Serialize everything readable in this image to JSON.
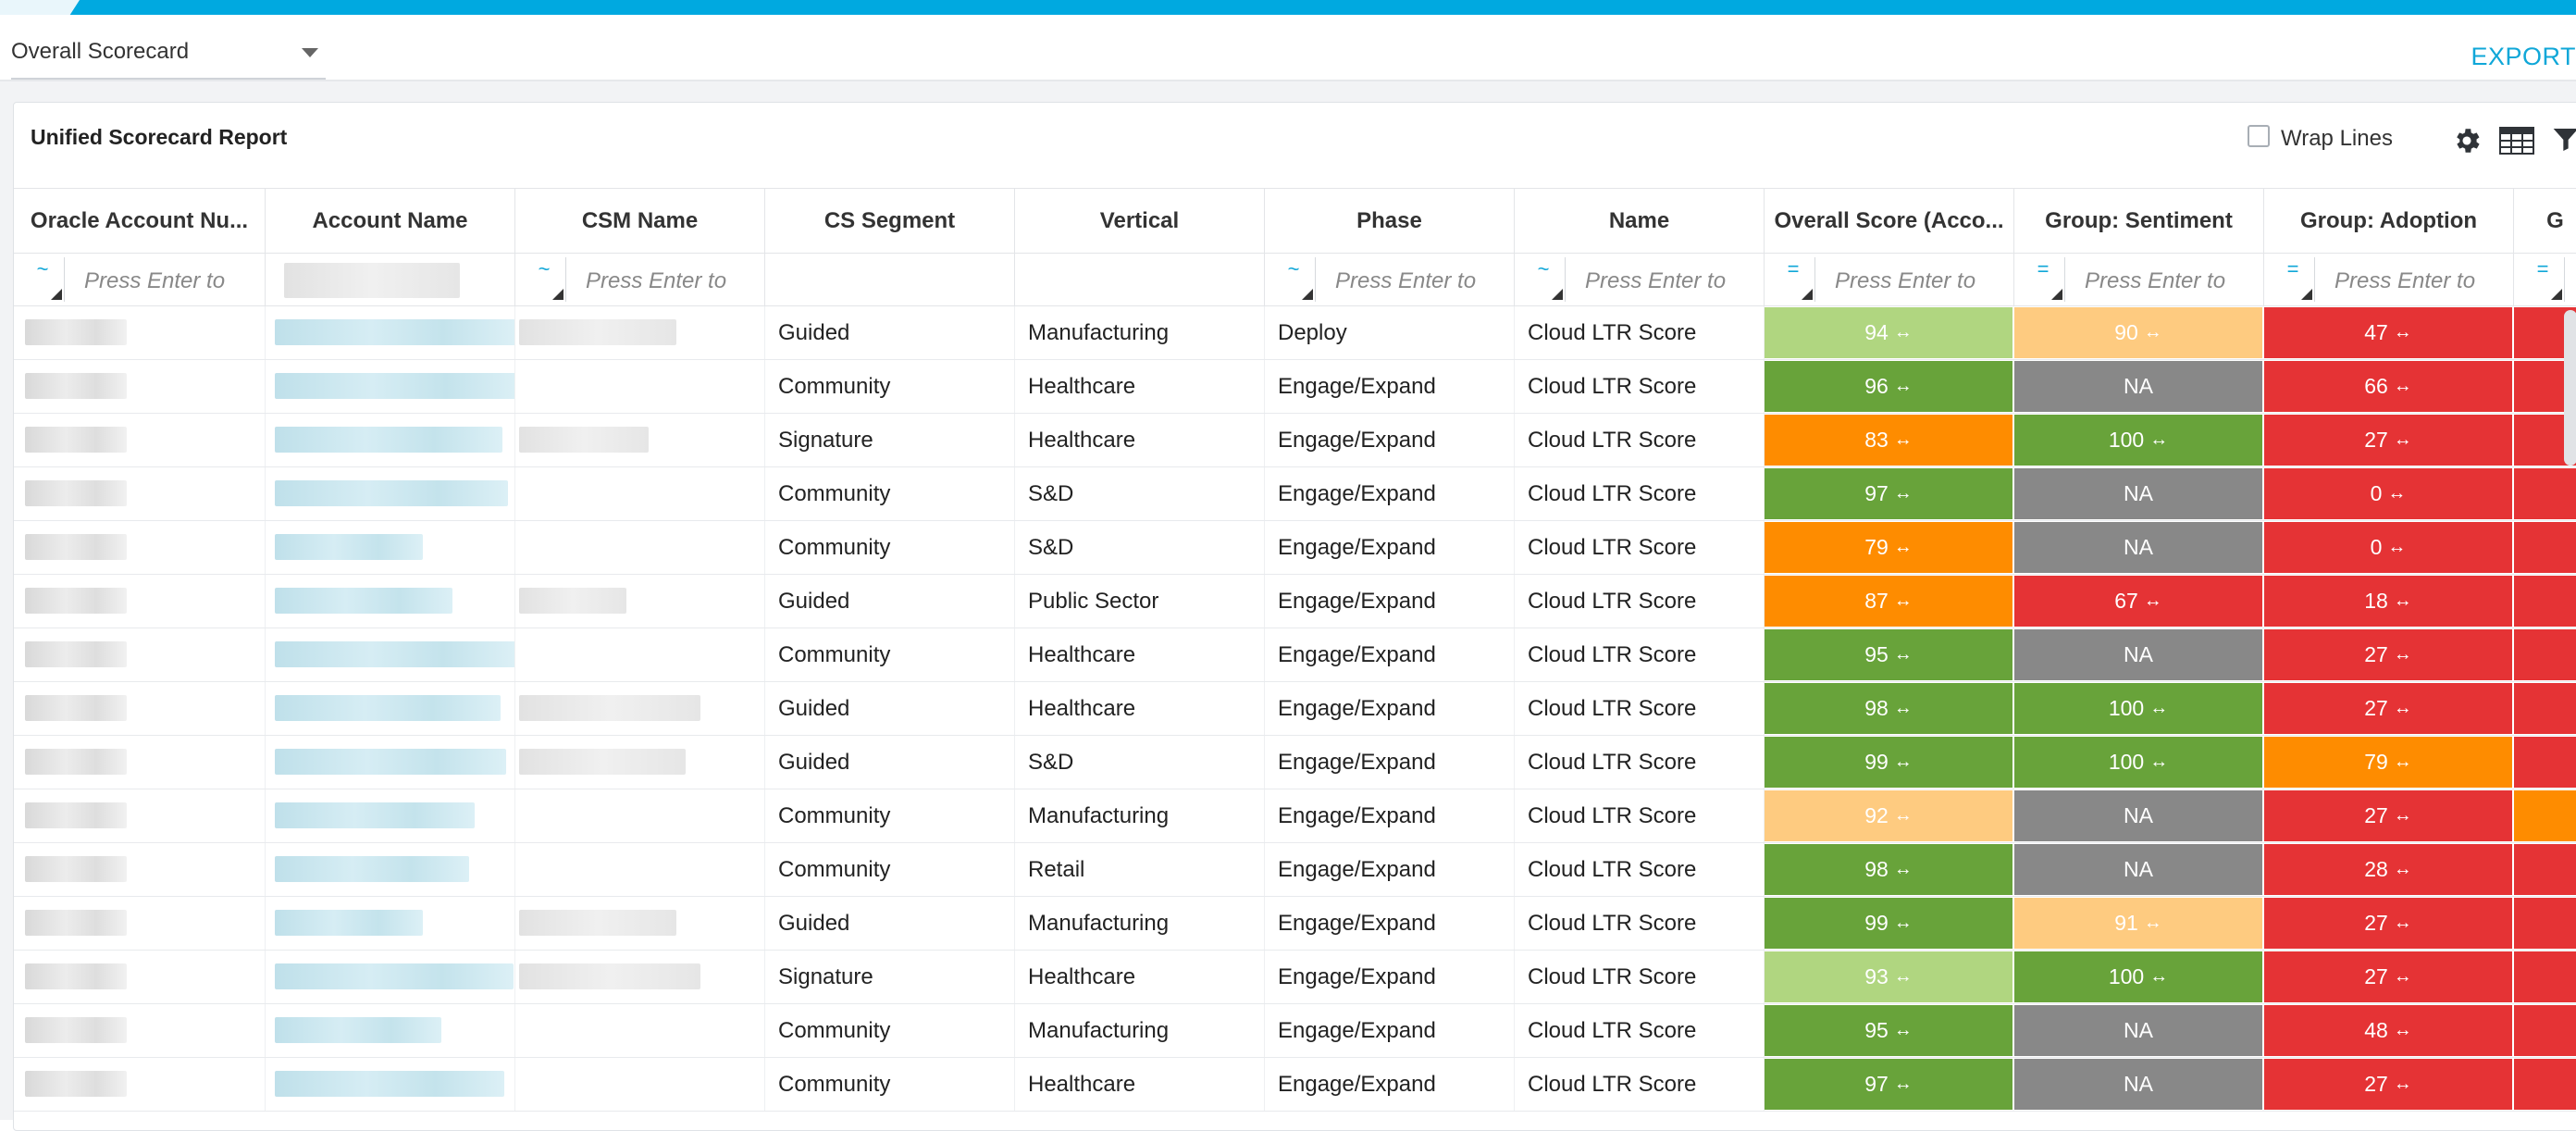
{
  "header": {
    "scorecard_select": "Overall Scorecard",
    "export_label": "EXPORT"
  },
  "report": {
    "title": "Unified Scorecard Report",
    "wrap_lines_label": "Wrap Lines",
    "wrap_lines_checked": false
  },
  "icons": [
    "gear-icon",
    "table-icon",
    "filter-icon",
    "chevron-down-icon"
  ],
  "columns": [
    {
      "label": "Oracle Account Nu...",
      "filter_op": "~",
      "filter_placeholder": "Press Enter to"
    },
    {
      "label": "Account Name",
      "filter_op": "",
      "filter_placeholder": ""
    },
    {
      "label": "CSM Name",
      "filter_op": "~",
      "filter_placeholder": "Press Enter to"
    },
    {
      "label": "CS Segment",
      "filter_op": "",
      "filter_placeholder": ""
    },
    {
      "label": "Vertical",
      "filter_op": "",
      "filter_placeholder": ""
    },
    {
      "label": "Phase",
      "filter_op": "~",
      "filter_placeholder": "Press Enter to"
    },
    {
      "label": "Name",
      "filter_op": "~",
      "filter_placeholder": "Press Enter to"
    },
    {
      "label": "Overall Score (Acco...",
      "filter_op": "=",
      "filter_placeholder": "Press Enter to"
    },
    {
      "label": "Group: Sentiment",
      "filter_op": "=",
      "filter_placeholder": "Press Enter to"
    },
    {
      "label": "Group: Adoption",
      "filter_op": "=",
      "filter_placeholder": "Press Enter to"
    },
    {
      "label": "G",
      "filter_op": "=",
      "filter_placeholder": ""
    }
  ],
  "colors": {
    "light_green": "#b0d680",
    "green": "#68a33a",
    "orange": "#fe8c00",
    "light_orange": "#fecb80",
    "red": "#e53335",
    "gray": "#888888",
    "accent": "#00a9e0"
  },
  "trend_symbol": "↔",
  "rows": [
    {
      "segment": "Guided",
      "vertical": "Manufacturing",
      "phase": "Deploy",
      "name": "Cloud LTR Score",
      "overall": {
        "text": "94",
        "color": "light_green"
      },
      "sentiment": {
        "text": "90",
        "color": "light_orange"
      },
      "adoption": {
        "text": "47",
        "color": "red"
      },
      "last_color": "red"
    },
    {
      "segment": "Community",
      "vertical": "Healthcare",
      "phase": "Engage/Expand",
      "name": "Cloud LTR Score",
      "overall": {
        "text": "96",
        "color": "green"
      },
      "sentiment": {
        "text": "NA",
        "color": "gray"
      },
      "adoption": {
        "text": "66",
        "color": "red"
      },
      "last_color": "red"
    },
    {
      "segment": "Signature",
      "vertical": "Healthcare",
      "phase": "Engage/Expand",
      "name": "Cloud LTR Score",
      "overall": {
        "text": "83",
        "color": "orange"
      },
      "sentiment": {
        "text": "100",
        "color": "green"
      },
      "adoption": {
        "text": "27",
        "color": "red"
      },
      "last_color": "red"
    },
    {
      "segment": "Community",
      "vertical": "S&D",
      "phase": "Engage/Expand",
      "name": "Cloud LTR Score",
      "overall": {
        "text": "97",
        "color": "green"
      },
      "sentiment": {
        "text": "NA",
        "color": "gray"
      },
      "adoption": {
        "text": "0",
        "color": "red"
      },
      "last_color": "red"
    },
    {
      "segment": "Community",
      "vertical": "S&D",
      "phase": "Engage/Expand",
      "name": "Cloud LTR Score",
      "overall": {
        "text": "79",
        "color": "orange"
      },
      "sentiment": {
        "text": "NA",
        "color": "gray"
      },
      "adoption": {
        "text": "0",
        "color": "red"
      },
      "last_color": "red"
    },
    {
      "segment": "Guided",
      "vertical": "Public Sector",
      "phase": "Engage/Expand",
      "name": "Cloud LTR Score",
      "overall": {
        "text": "87",
        "color": "orange"
      },
      "sentiment": {
        "text": "67",
        "color": "red"
      },
      "adoption": {
        "text": "18",
        "color": "red"
      },
      "last_color": "red"
    },
    {
      "segment": "Community",
      "vertical": "Healthcare",
      "phase": "Engage/Expand",
      "name": "Cloud LTR Score",
      "overall": {
        "text": "95",
        "color": "green"
      },
      "sentiment": {
        "text": "NA",
        "color": "gray"
      },
      "adoption": {
        "text": "27",
        "color": "red"
      },
      "last_color": "red"
    },
    {
      "segment": "Guided",
      "vertical": "Healthcare",
      "phase": "Engage/Expand",
      "name": "Cloud LTR Score",
      "overall": {
        "text": "98",
        "color": "green"
      },
      "sentiment": {
        "text": "100",
        "color": "green"
      },
      "adoption": {
        "text": "27",
        "color": "red"
      },
      "last_color": "red"
    },
    {
      "segment": "Guided",
      "vertical": "S&D",
      "phase": "Engage/Expand",
      "name": "Cloud LTR Score",
      "overall": {
        "text": "99",
        "color": "green"
      },
      "sentiment": {
        "text": "100",
        "color": "green"
      },
      "adoption": {
        "text": "79",
        "color": "orange"
      },
      "last_color": "red"
    },
    {
      "segment": "Community",
      "vertical": "Manufacturing",
      "phase": "Engage/Expand",
      "name": "Cloud LTR Score",
      "overall": {
        "text": "92",
        "color": "light_orange"
      },
      "sentiment": {
        "text": "NA",
        "color": "gray"
      },
      "adoption": {
        "text": "27",
        "color": "red"
      },
      "last_color": "orange"
    },
    {
      "segment": "Community",
      "vertical": "Retail",
      "phase": "Engage/Expand",
      "name": "Cloud LTR Score",
      "overall": {
        "text": "98",
        "color": "green"
      },
      "sentiment": {
        "text": "NA",
        "color": "gray"
      },
      "adoption": {
        "text": "28",
        "color": "red"
      },
      "last_color": "red"
    },
    {
      "segment": "Guided",
      "vertical": "Manufacturing",
      "phase": "Engage/Expand",
      "name": "Cloud LTR Score",
      "overall": {
        "text": "99",
        "color": "green"
      },
      "sentiment": {
        "text": "91",
        "color": "light_orange"
      },
      "adoption": {
        "text": "27",
        "color": "red"
      },
      "last_color": "red"
    },
    {
      "segment": "Signature",
      "vertical": "Healthcare",
      "phase": "Engage/Expand",
      "name": "Cloud LTR Score",
      "overall": {
        "text": "93",
        "color": "light_green"
      },
      "sentiment": {
        "text": "100",
        "color": "green"
      },
      "adoption": {
        "text": "27",
        "color": "red"
      },
      "last_color": "red"
    },
    {
      "segment": "Community",
      "vertical": "Manufacturing",
      "phase": "Engage/Expand",
      "name": "Cloud LTR Score",
      "overall": {
        "text": "95",
        "color": "green"
      },
      "sentiment": {
        "text": "NA",
        "color": "gray"
      },
      "adoption": {
        "text": "48",
        "color": "red"
      },
      "last_color": "red"
    },
    {
      "segment": "Community",
      "vertical": "Healthcare",
      "phase": "Engage/Expand",
      "name": "Cloud LTR Score",
      "overall": {
        "text": "97",
        "color": "green"
      },
      "sentiment": {
        "text": "NA",
        "color": "gray"
      },
      "adoption": {
        "text": "27",
        "color": "red"
      },
      "last_color": "red"
    }
  ]
}
